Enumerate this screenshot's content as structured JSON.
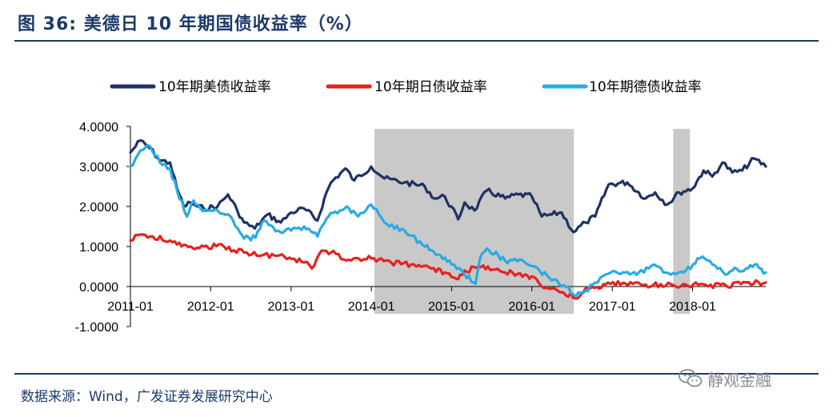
{
  "header": {
    "title": "图 36: 美德日 10 年期国债收益率（%）"
  },
  "footer": {
    "source": "数据来源：Wind，广发证券发展研究中心"
  },
  "watermark": {
    "text": "静观金融",
    "icon": "wechat-icon"
  },
  "chart_data": {
    "type": "line",
    "xlabel": "",
    "ylabel": "",
    "x_tick_labels": [
      "2011-01",
      "2012-01",
      "2013-01",
      "2014-01",
      "2015-01",
      "2016-01",
      "2017-01",
      "2018-01"
    ],
    "y_tick_labels": [
      "4.0000",
      "3.0000",
      "2.0000",
      "1.0000",
      "0.0000",
      "-1.0000"
    ],
    "ylim": [
      -1,
      4
    ],
    "xlim": [
      "2011-01-01",
      "2018-11-30"
    ],
    "grid": false,
    "legend_position": "top",
    "shaded_periods": [
      {
        "start": "2014-01-15",
        "end": "2016-07-10"
      },
      {
        "start": "2017-10-05",
        "end": "2017-12-20"
      }
    ],
    "shade_color": "#c9c9c9",
    "series": [
      {
        "name": "10年期美债收益率",
        "color": "#1f3264",
        "points": [
          [
            "2011-01-01",
            3.35
          ],
          [
            "2011-02-15",
            3.65
          ],
          [
            "2011-04-01",
            3.45
          ],
          [
            "2011-05-15",
            3.15
          ],
          [
            "2011-06-30",
            3.1
          ],
          [
            "2011-08-01",
            2.45
          ],
          [
            "2011-09-01",
            2.0
          ],
          [
            "2011-10-01",
            2.1
          ],
          [
            "2011-11-01",
            2.0
          ],
          [
            "2011-12-01",
            1.95
          ],
          [
            "2012-02-01",
            2.0
          ],
          [
            "2012-03-20",
            2.3
          ],
          [
            "2012-05-01",
            1.9
          ],
          [
            "2012-06-01",
            1.6
          ],
          [
            "2012-07-20",
            1.45
          ],
          [
            "2012-09-15",
            1.8
          ],
          [
            "2012-11-15",
            1.6
          ],
          [
            "2013-01-01",
            1.85
          ],
          [
            "2013-03-01",
            1.95
          ],
          [
            "2013-05-01",
            1.65
          ],
          [
            "2013-06-01",
            2.2
          ],
          [
            "2013-07-01",
            2.6
          ],
          [
            "2013-09-05",
            2.95
          ],
          [
            "2013-10-15",
            2.65
          ],
          [
            "2013-12-31",
            3.0
          ],
          [
            "2014-03-01",
            2.7
          ],
          [
            "2014-06-01",
            2.6
          ],
          [
            "2014-09-01",
            2.5
          ],
          [
            "2014-10-15",
            2.2
          ],
          [
            "2014-12-01",
            2.25
          ],
          [
            "2015-01-31",
            1.68
          ],
          [
            "2015-03-01",
            2.1
          ],
          [
            "2015-04-15",
            1.9
          ],
          [
            "2015-06-10",
            2.4
          ],
          [
            "2015-09-01",
            2.2
          ],
          [
            "2015-11-01",
            2.3
          ],
          [
            "2016-01-01",
            2.25
          ],
          [
            "2016-02-15",
            1.75
          ],
          [
            "2016-04-01",
            1.8
          ],
          [
            "2016-05-15",
            1.85
          ],
          [
            "2016-07-08",
            1.36
          ],
          [
            "2016-09-01",
            1.6
          ],
          [
            "2016-10-15",
            1.75
          ],
          [
            "2016-12-15",
            2.55
          ],
          [
            "2017-03-10",
            2.6
          ],
          [
            "2017-06-01",
            2.2
          ],
          [
            "2017-07-15",
            2.35
          ],
          [
            "2017-09-08",
            2.05
          ],
          [
            "2017-11-01",
            2.35
          ],
          [
            "2018-01-01",
            2.45
          ],
          [
            "2018-02-20",
            2.9
          ],
          [
            "2018-04-01",
            2.75
          ],
          [
            "2018-05-17",
            3.1
          ],
          [
            "2018-07-01",
            2.85
          ],
          [
            "2018-08-15",
            2.9
          ],
          [
            "2018-10-08",
            3.2
          ],
          [
            "2018-11-30",
            3.0
          ]
        ]
      },
      {
        "name": "10年期日债收益率",
        "color": "#e8211e",
        "points": [
          [
            "2011-01-01",
            1.15
          ],
          [
            "2011-02-15",
            1.3
          ],
          [
            "2011-04-01",
            1.25
          ],
          [
            "2011-06-30",
            1.15
          ],
          [
            "2011-08-01",
            1.05
          ],
          [
            "2011-10-01",
            1.0
          ],
          [
            "2011-12-01",
            1.0
          ],
          [
            "2012-03-01",
            1.0
          ],
          [
            "2012-06-01",
            0.85
          ],
          [
            "2012-09-01",
            0.8
          ],
          [
            "2012-12-01",
            0.75
          ],
          [
            "2013-03-01",
            0.6
          ],
          [
            "2013-04-05",
            0.45
          ],
          [
            "2013-05-20",
            0.9
          ],
          [
            "2013-07-01",
            0.85
          ],
          [
            "2013-10-01",
            0.65
          ],
          [
            "2014-01-01",
            0.7
          ],
          [
            "2014-04-01",
            0.6
          ],
          [
            "2014-07-01",
            0.55
          ],
          [
            "2014-10-01",
            0.45
          ],
          [
            "2014-12-01",
            0.35
          ],
          [
            "2015-01-20",
            0.2
          ],
          [
            "2015-03-01",
            0.4
          ],
          [
            "2015-06-15",
            0.5
          ],
          [
            "2015-09-01",
            0.35
          ],
          [
            "2015-12-01",
            0.3
          ],
          [
            "2016-01-20",
            0.2
          ],
          [
            "2016-02-15",
            0.0
          ],
          [
            "2016-04-01",
            -0.05
          ],
          [
            "2016-07-27",
            -0.3
          ],
          [
            "2016-09-01",
            -0.05
          ],
          [
            "2016-11-01",
            -0.05
          ],
          [
            "2016-12-01",
            0.05
          ],
          [
            "2017-03-01",
            0.08
          ],
          [
            "2017-06-01",
            0.05
          ],
          [
            "2017-09-01",
            0.02
          ],
          [
            "2017-12-01",
            0.05
          ],
          [
            "2018-03-01",
            0.04
          ],
          [
            "2018-06-01",
            0.03
          ],
          [
            "2018-09-01",
            0.1
          ],
          [
            "2018-11-30",
            0.1
          ]
        ]
      },
      {
        "name": "10年期德债收益率",
        "color": "#29abe2",
        "points": [
          [
            "2011-01-01",
            3.0
          ],
          [
            "2011-02-15",
            3.4
          ],
          [
            "2011-04-01",
            3.5
          ],
          [
            "2011-05-15",
            3.1
          ],
          [
            "2011-06-30",
            2.95
          ],
          [
            "2011-08-01",
            2.4
          ],
          [
            "2011-09-15",
            1.75
          ],
          [
            "2011-10-15",
            2.15
          ],
          [
            "2011-11-15",
            1.95
          ],
          [
            "2011-12-31",
            1.9
          ],
          [
            "2012-02-01",
            1.9
          ],
          [
            "2012-04-01",
            1.75
          ],
          [
            "2012-06-01",
            1.2
          ],
          [
            "2012-07-23",
            1.22
          ],
          [
            "2012-09-01",
            1.65
          ],
          [
            "2012-11-01",
            1.4
          ],
          [
            "2013-01-01",
            1.4
          ],
          [
            "2013-03-01",
            1.5
          ],
          [
            "2013-05-01",
            1.25
          ],
          [
            "2013-06-20",
            1.75
          ],
          [
            "2013-09-10",
            2.0
          ],
          [
            "2013-11-01",
            1.75
          ],
          [
            "2013-12-31",
            2.05
          ],
          [
            "2014-03-01",
            1.6
          ],
          [
            "2014-06-01",
            1.4
          ],
          [
            "2014-09-01",
            1.0
          ],
          [
            "2014-11-01",
            0.8
          ],
          [
            "2015-01-01",
            0.55
          ],
          [
            "2015-03-01",
            0.3
          ],
          [
            "2015-04-20",
            0.07
          ],
          [
            "2015-05-10",
            0.7
          ],
          [
            "2015-06-10",
            0.95
          ],
          [
            "2015-09-01",
            0.65
          ],
          [
            "2015-12-01",
            0.6
          ],
          [
            "2016-01-15",
            0.5
          ],
          [
            "2016-04-01",
            0.15
          ],
          [
            "2016-06-15",
            0.0
          ],
          [
            "2016-07-08",
            -0.2
          ],
          [
            "2016-09-01",
            -0.1
          ],
          [
            "2016-10-15",
            0.1
          ],
          [
            "2016-12-01",
            0.3
          ],
          [
            "2017-03-01",
            0.35
          ],
          [
            "2017-05-01",
            0.35
          ],
          [
            "2017-07-10",
            0.55
          ],
          [
            "2017-09-01",
            0.35
          ],
          [
            "2017-12-01",
            0.4
          ],
          [
            "2018-02-15",
            0.75
          ],
          [
            "2018-04-01",
            0.55
          ],
          [
            "2018-05-29",
            0.3
          ],
          [
            "2018-07-01",
            0.4
          ],
          [
            "2018-09-01",
            0.45
          ],
          [
            "2018-10-10",
            0.55
          ],
          [
            "2018-11-30",
            0.35
          ]
        ]
      }
    ]
  }
}
